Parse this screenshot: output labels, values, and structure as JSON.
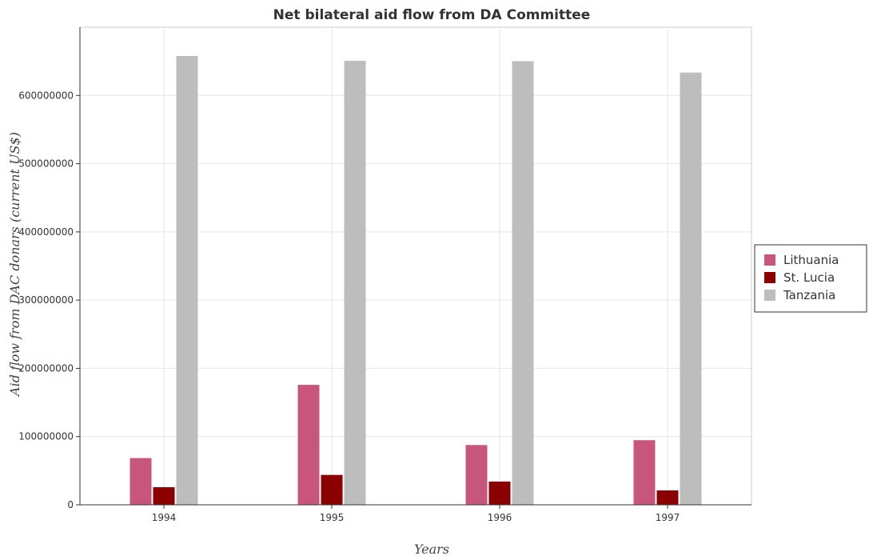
{
  "chart_data": {
    "type": "bar",
    "title": "Net bilateral aid flow from DA Committee",
    "xlabel": "Years",
    "ylabel": "Aid flow from DAC donars (current US$)",
    "categories": [
      "1994",
      "1995",
      "1996",
      "1997"
    ],
    "series": [
      {
        "name": "Lithuania",
        "color": "#c8557c",
        "values": [
          68500000,
          175800000,
          87600000,
          94700000
        ]
      },
      {
        "name": "St. Lucia",
        "color": "#8b0000",
        "values": [
          25800000,
          43800000,
          34100000,
          21100000
        ]
      },
      {
        "name": "Tanzania",
        "color": "#bdbdbd",
        "values": [
          657800000,
          650800000,
          650200000,
          633500000
        ]
      }
    ],
    "ylim": [
      0,
      700000000
    ],
    "yticks": [
      0,
      100000000,
      200000000,
      300000000,
      400000000,
      500000000,
      600000000
    ],
    "ytick_labels": [
      "0",
      "100000000",
      "200000000",
      "300000000",
      "400000000",
      "500000000",
      "600000000"
    ],
    "grid": true,
    "legend_position": "right"
  }
}
